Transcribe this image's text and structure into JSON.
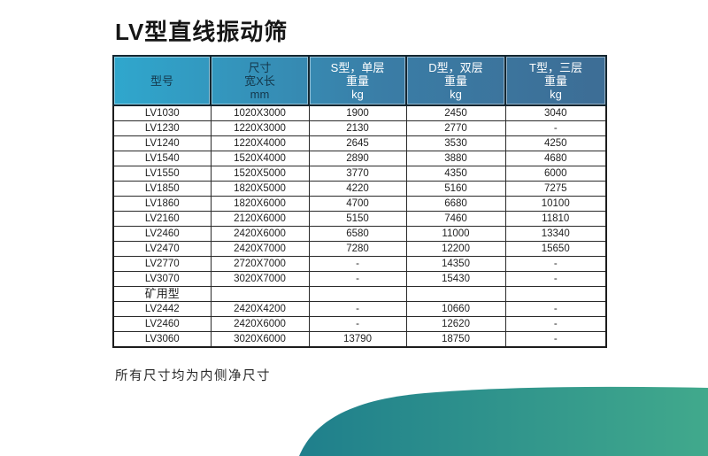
{
  "page": {
    "title": "LV型直线振动筛",
    "footnote": "所有尺寸均为内侧净尺寸"
  },
  "table": {
    "section_label": "矿用型",
    "headers": [
      {
        "lines": [
          "型号"
        ]
      },
      {
        "lines": [
          "尺寸",
          "宽X长",
          "mm"
        ]
      },
      {
        "lines": [
          "S型，单层",
          "重量",
          "kg"
        ]
      },
      {
        "lines": [
          "D型，双层",
          "重量",
          "kg"
        ]
      },
      {
        "lines": [
          "T型，三层",
          "重量",
          "kg"
        ]
      }
    ],
    "rows": [
      [
        "LV1030",
        "1020X3000",
        "1900",
        "2450",
        "3040"
      ],
      [
        "LV1230",
        "1220X3000",
        "2130",
        "2770",
        "-"
      ],
      [
        "LV1240",
        "1220X4000",
        "2645",
        "3530",
        "4250"
      ],
      [
        "LV1540",
        "1520X4000",
        "2890",
        "3880",
        "4680"
      ],
      [
        "LV1550",
        "1520X5000",
        "3770",
        "4350",
        "6000"
      ],
      [
        "LV1850",
        "1820X5000",
        "4220",
        "5160",
        "7275"
      ],
      [
        "LV1860",
        "1820X6000",
        "4700",
        "6680",
        "10100"
      ],
      [
        "LV2160",
        "2120X6000",
        "5150",
        "7460",
        "11810"
      ],
      [
        "LV2460",
        "2420X6000",
        "6580",
        "11000",
        "13340"
      ],
      [
        "LV2470",
        "2420X7000",
        "7280",
        "12200",
        "15650"
      ],
      [
        "LV2770",
        "2720X7000",
        "-",
        "14350",
        "-"
      ],
      [
        "LV3070",
        "3020X7000",
        "-",
        "15430",
        "-"
      ],
      [
        "矿用型",
        "",
        "",
        "",
        ""
      ],
      [
        "LV2442",
        "2420X4200",
        "-",
        "10660",
        "-"
      ],
      [
        "LV2460",
        "2420X6000",
        "-",
        "12620",
        "-"
      ],
      [
        "LV3060",
        "3020X6000",
        "13790",
        "18750",
        "-"
      ]
    ]
  },
  "colors": {
    "header_grad_left": "#2fa7cd",
    "header_grad_mid": "#3a7da6",
    "header_grad_right": "#3d6d95",
    "header_text_dark": "#14384c",
    "header_text_light": "#ffffff",
    "swoosh_left": "#1f7f8c",
    "swoosh_right": "#41a98c"
  }
}
